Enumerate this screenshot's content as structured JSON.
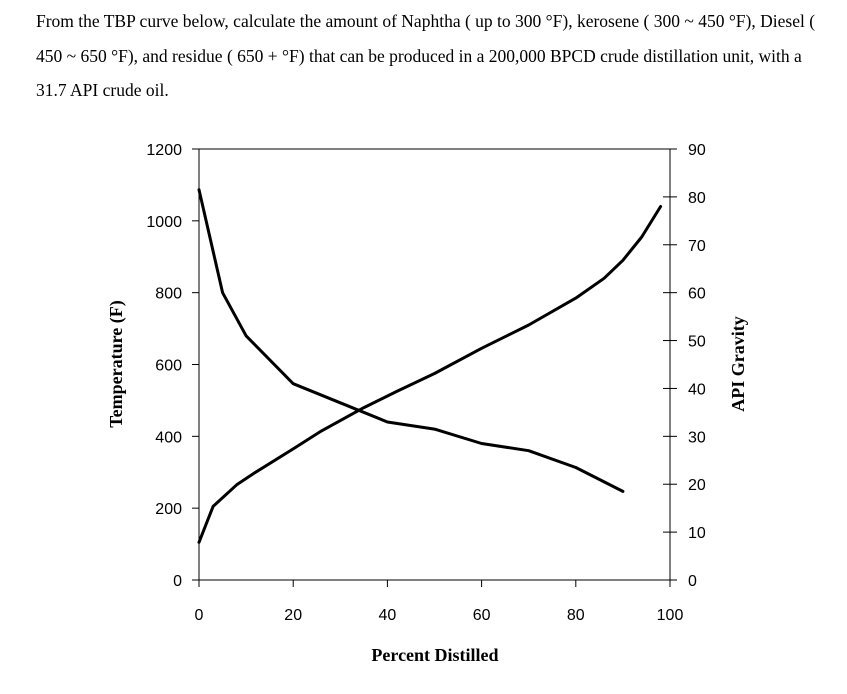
{
  "question": {
    "text": "From the TBP curve below, calculate the amount of Naphtha ( up  to 300 °F), kerosene ( 300 ~ 450 °F), Diesel ( 450 ~ 650 °F), and residue ( 650 + °F) that can be produced in a 200,000 BPCD crude distillation unit, with a 31.7 API crude oil."
  },
  "chart_data": {
    "type": "line",
    "xlabel": "Percent Distilled",
    "ylabel": "Temperature (F)",
    "y2label": "API Gravity",
    "xlim": [
      0,
      100
    ],
    "ylim": [
      0,
      1200
    ],
    "y2lim": [
      0,
      90
    ],
    "xticks": [
      0,
      20,
      40,
      60,
      80,
      100
    ],
    "yticks": [
      0,
      200,
      400,
      600,
      800,
      1000,
      1200
    ],
    "y2ticks": [
      0,
      10,
      20,
      30,
      40,
      50,
      60,
      70,
      80,
      90
    ],
    "grid": false,
    "series": [
      {
        "axis": "left",
        "x": [
          0,
          3,
          8,
          12,
          20,
          26,
          35,
          42,
          50,
          60,
          70,
          80,
          86,
          90,
          94,
          98
        ],
        "y": [
          105,
          205,
          265,
          300,
          365,
          415,
          480,
          525,
          575,
          645,
          710,
          785,
          840,
          890,
          955,
          1040
        ]
      },
      {
        "axis": "right",
        "x": [
          0,
          5,
          10,
          20,
          30,
          40,
          50,
          60,
          70,
          80,
          90
        ],
        "y": [
          81.5,
          60,
          51,
          41,
          37,
          33,
          31.5,
          28.5,
          27,
          23.5,
          18.5
        ]
      }
    ]
  }
}
